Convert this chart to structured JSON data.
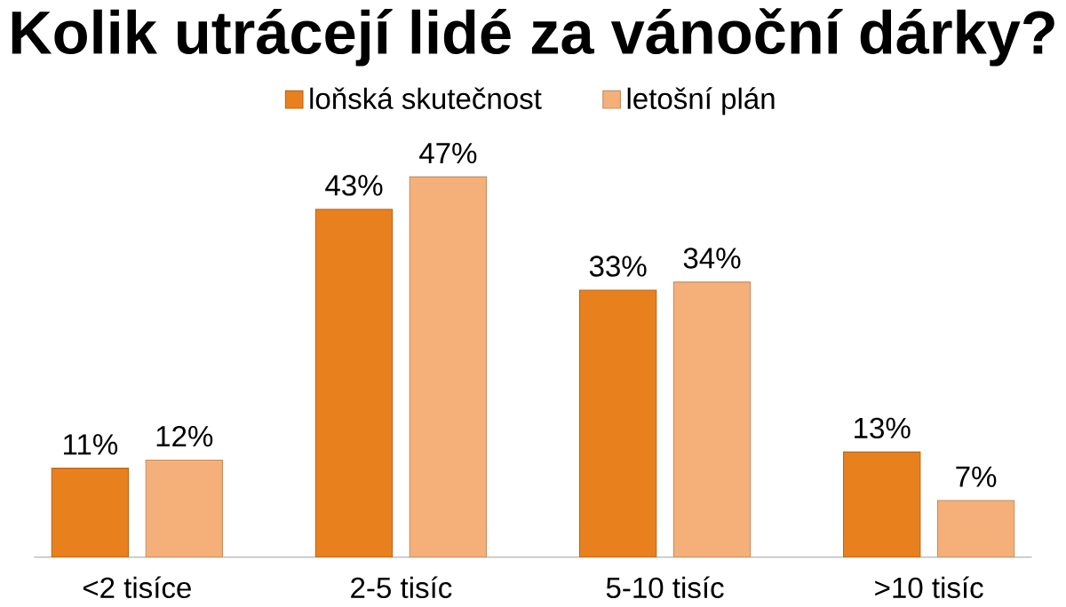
{
  "chart_data": {
    "type": "bar",
    "title": "Kolik utrácejí lidé za vánoční dárky?",
    "categories": [
      "<2 tisíce",
      "2-5 tisíc",
      "5-10 tisíc",
      ">10 tisíc"
    ],
    "series": [
      {
        "name": "loňská skutečnost",
        "color": "#e8801e",
        "values": [
          11,
          43,
          33,
          13
        ],
        "value_labels": [
          "11%",
          "43%",
          "33%",
          "13%"
        ]
      },
      {
        "name": "letošní plán",
        "color": "#f5b07a",
        "values": [
          12,
          47,
          34,
          7
        ],
        "value_labels": [
          "12%",
          "47%",
          "34%",
          "7%"
        ]
      }
    ],
    "legend": "top"
  }
}
